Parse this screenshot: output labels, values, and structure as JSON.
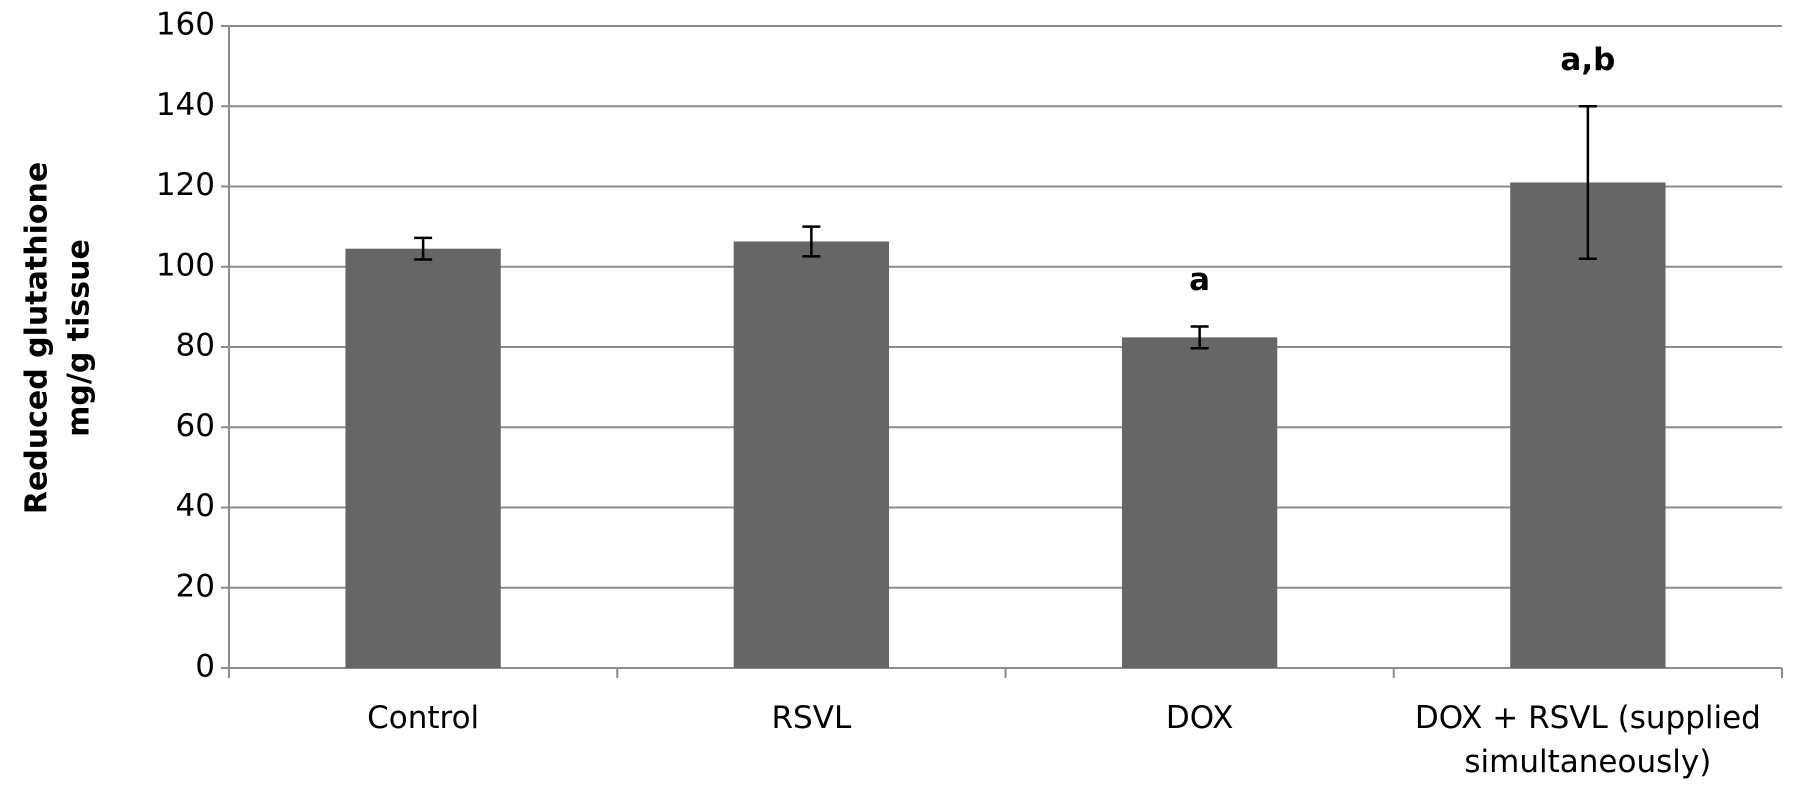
{
  "chart_data": {
    "type": "bar",
    "y_label": [
      "Reduced glutathione",
      "mg/g  tissue"
    ],
    "categories": [
      "Control",
      "RSVL",
      "DOX",
      "DOX + RSVL (supplied simultaneously)"
    ],
    "values": [
      104.5,
      106.3,
      82.4,
      121
    ],
    "errors": [
      2.7,
      3.7,
      2.7,
      19
    ],
    "annotations": [
      {
        "text": "a",
        "category": "DOX"
      },
      {
        "text": "a,b",
        "category": "DOX + RSVL (supplied simultaneously)"
      }
    ],
    "color": "#666666",
    "ylim": [
      0,
      160
    ],
    "yticks": [
      0,
      20,
      40,
      60,
      80,
      100,
      120,
      140,
      160
    ],
    "grid": true
  }
}
